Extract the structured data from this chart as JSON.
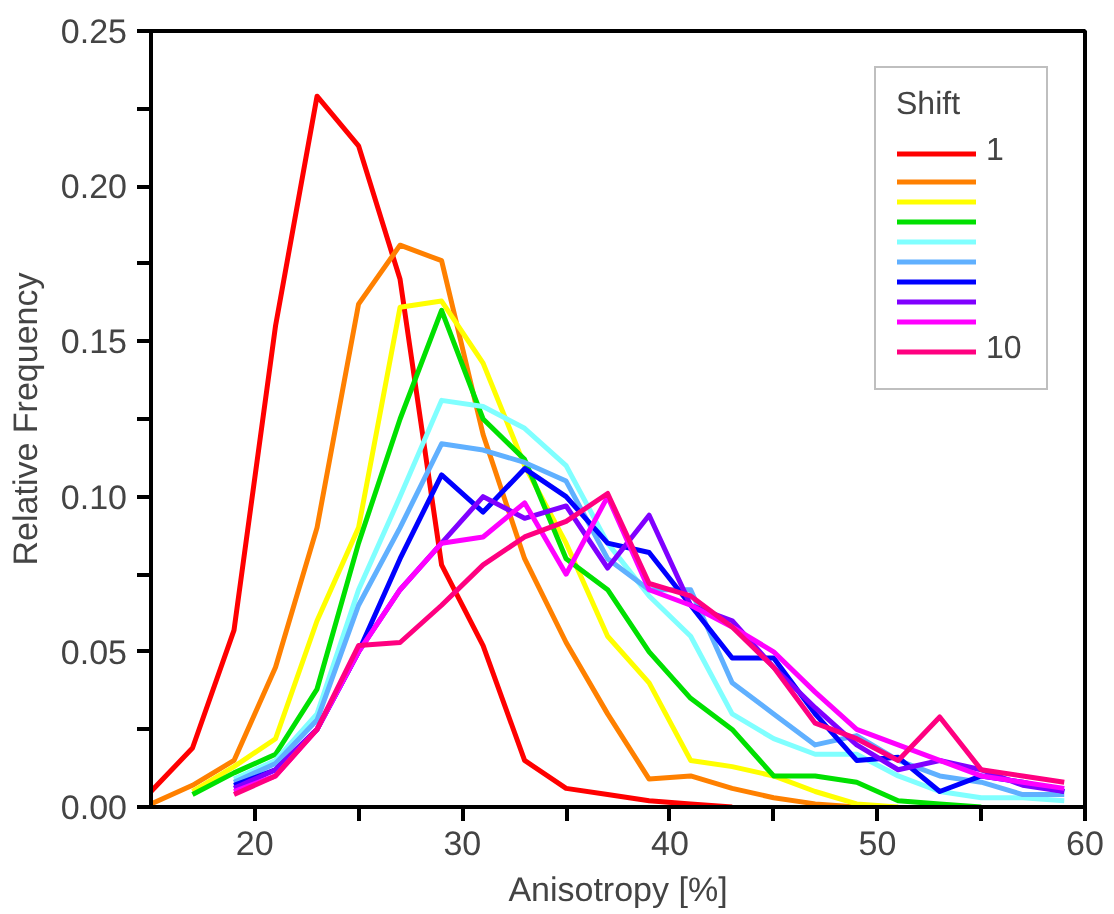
{
  "chart_data": {
    "type": "line",
    "xlabel": "Anisotropy [%]",
    "ylabel": "Relative Frequency",
    "legend_title": "Shift",
    "legend": "top right",
    "grid": false,
    "x": [
      15,
      17,
      19,
      21,
      23,
      25,
      27,
      29,
      31,
      33,
      35,
      37,
      39,
      41,
      43,
      45,
      47,
      49,
      51,
      53,
      55,
      57,
      59
    ],
    "xlim": [
      15,
      60
    ],
    "ylim": [
      0,
      0.25
    ],
    "xticks": [
      {
        "value": 20,
        "label": "20"
      },
      {
        "value": 25,
        "label": null
      },
      {
        "value": 30,
        "label": "30"
      },
      {
        "value": 35,
        "label": null
      },
      {
        "value": 40,
        "label": "40"
      },
      {
        "value": 45,
        "label": null
      },
      {
        "value": 50,
        "label": "50"
      },
      {
        "value": 55,
        "label": null
      },
      {
        "value": 60,
        "label": "60"
      }
    ],
    "yticks": [
      {
        "value": 0,
        "label": "0.00"
      },
      {
        "value": 0.025,
        "label": null
      },
      {
        "value": 0.05,
        "label": "0.05"
      },
      {
        "value": 0.075,
        "label": null
      },
      {
        "value": 0.1,
        "label": "0.10"
      },
      {
        "value": 0.125,
        "label": null
      },
      {
        "value": 0.15,
        "label": "0.15"
      },
      {
        "value": 0.175,
        "label": null
      },
      {
        "value": 0.2,
        "label": "0.20"
      },
      {
        "value": 0.225,
        "label": null
      },
      {
        "value": 0.25,
        "label": "0.25"
      }
    ],
    "series": [
      {
        "name": "1",
        "color": "#ff0000",
        "values": [
          0.005,
          0.019,
          0.057,
          0.155,
          0.229,
          0.213,
          0.17,
          0.078,
          0.052,
          0.015,
          0.006,
          0.004,
          0.002,
          0.001,
          0,
          null,
          null,
          null,
          null,
          null,
          null,
          null,
          null
        ]
      },
      {
        "color": "#ff8000",
        "values": [
          0.001,
          0.007,
          0.015,
          0.045,
          0.09,
          0.162,
          0.181,
          0.176,
          0.12,
          0.08,
          0.053,
          0.03,
          0.009,
          0.01,
          0.006,
          0.003,
          0.001,
          0,
          null,
          null,
          null,
          null,
          null
        ]
      },
      {
        "color": "#ffff00",
        "values": [
          null,
          0.005,
          0.013,
          0.022,
          0.06,
          0.09,
          0.161,
          0.163,
          0.143,
          0.11,
          0.085,
          0.055,
          0.04,
          0.015,
          0.013,
          0.01,
          0.005,
          0.001,
          0,
          null,
          null,
          null,
          null
        ]
      },
      {
        "color": "#00e000",
        "values": [
          null,
          0.004,
          0.011,
          0.017,
          0.038,
          0.085,
          0.125,
          0.16,
          0.125,
          0.112,
          0.08,
          0.07,
          0.05,
          0.035,
          0.025,
          0.01,
          0.01,
          0.008,
          0.002,
          0.001,
          0,
          null,
          null
        ]
      },
      {
        "color": "#80ffff",
        "values": [
          null,
          null,
          0.009,
          0.015,
          0.03,
          0.07,
          0.1,
          0.131,
          0.129,
          0.122,
          0.11,
          0.085,
          0.068,
          0.055,
          0.03,
          0.022,
          0.017,
          0.017,
          0.01,
          0.005,
          0.003,
          0.003,
          0.002
        ]
      },
      {
        "color": "#60b0ff",
        "values": [
          null,
          null,
          0.008,
          0.014,
          0.028,
          0.065,
          0.09,
          0.117,
          0.115,
          0.111,
          0.105,
          0.08,
          0.07,
          0.07,
          0.04,
          0.03,
          0.02,
          0.023,
          0.015,
          0.01,
          0.008,
          0.004,
          0.004
        ]
      },
      {
        "color": "#0000ff",
        "values": [
          null,
          null,
          0.007,
          0.012,
          0.025,
          0.05,
          0.08,
          0.107,
          0.095,
          0.109,
          0.1,
          0.085,
          0.082,
          0.065,
          0.048,
          0.048,
          0.03,
          0.015,
          0.016,
          0.005,
          0.01,
          0.008,
          0.005
        ]
      },
      {
        "color": "#8000ff",
        "values": [
          null,
          null,
          0.006,
          0.012,
          0.025,
          0.05,
          0.07,
          0.085,
          0.1,
          0.093,
          0.097,
          0.077,
          0.094,
          0.065,
          0.06,
          0.045,
          0.032,
          0.02,
          0.012,
          0.015,
          0.012,
          0.007,
          0.005
        ]
      },
      {
        "color": "#ff00ff",
        "values": [
          null,
          null,
          0.005,
          0.01,
          0.025,
          0.05,
          0.07,
          0.085,
          0.087,
          0.098,
          0.075,
          0.1,
          0.07,
          0.065,
          0.058,
          0.05,
          0.037,
          0.025,
          0.02,
          0.015,
          0.01,
          0.008,
          0.006
        ]
      },
      {
        "name": "10",
        "color": "#ff0080",
        "values": [
          null,
          null,
          0.004,
          0.01,
          0.025,
          0.052,
          0.053,
          0.065,
          0.078,
          0.087,
          0.092,
          0.101,
          0.072,
          0.068,
          0.058,
          0.045,
          0.027,
          0.022,
          0.015,
          0.029,
          0.012,
          0.01,
          0.008
        ]
      }
    ]
  }
}
